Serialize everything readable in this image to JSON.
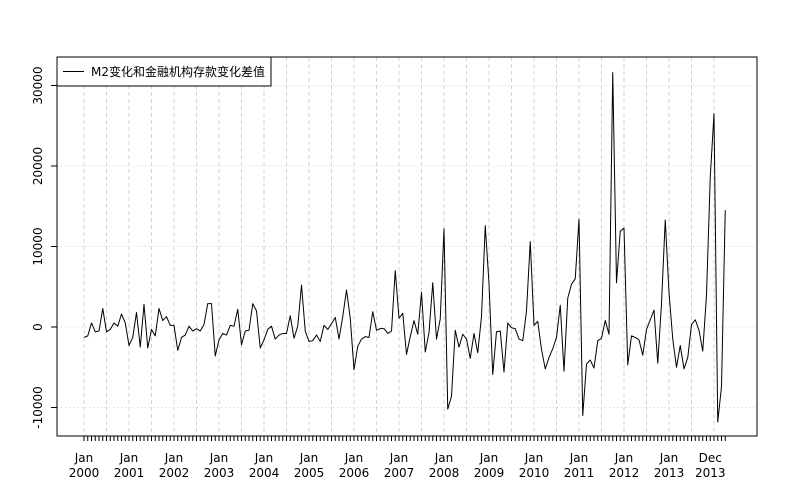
{
  "chart_data": {
    "type": "line",
    "title": "",
    "xlabel": "",
    "ylabel": "",
    "ylim": [
      -13400,
      33500
    ],
    "grid": true,
    "legend_position": "top-left",
    "series": [
      {
        "name": "M2变化和金融机构存款变化差值",
        "color": "#000000",
        "values": [
          -1300,
          -1100,
          500,
          -600,
          -500,
          2300,
          -600,
          -300,
          500,
          100,
          1600,
          500,
          -2300,
          -1300,
          1800,
          -2500,
          2800,
          -2600,
          -300,
          -1100,
          2300,
          800,
          1300,
          200,
          200,
          -2900,
          -1300,
          -1000,
          100,
          -500,
          -200,
          -500,
          300,
          2900,
          2900,
          -3600,
          -1600,
          -800,
          -1000,
          200,
          100,
          2200,
          -2200,
          -500,
          -400,
          2900,
          2000,
          -2600,
          -1600,
          -300,
          100,
          -1500,
          -1000,
          -800,
          -800,
          1400,
          -1400,
          100,
          5200,
          -500,
          -1800,
          -1700,
          -1000,
          -1800,
          200,
          -300,
          400,
          1200,
          -1500,
          1300,
          4600,
          1100,
          -5300,
          -2400,
          -1500,
          -1200,
          -1300,
          1900,
          -400,
          -200,
          -200,
          -800,
          -500,
          7000,
          1100,
          1700,
          -3400,
          -1200,
          800,
          -900,
          4300,
          -3100,
          -700,
          5500,
          -1500,
          1000,
          12200,
          -10200,
          -8600,
          -400,
          -2500,
          -900,
          -1500,
          -3900,
          -800,
          -3200,
          1300,
          12600,
          5400,
          -5900,
          -600,
          -500,
          -5600,
          500,
          -100,
          -200,
          -1500,
          -1700,
          2000,
          10600,
          200,
          700,
          -2800,
          -5200,
          -3800,
          -2700,
          -1300,
          2700,
          -5500,
          3600,
          5300,
          6000,
          13400,
          -11000,
          -4600,
          -4100,
          -5100,
          -1700,
          -1400,
          800,
          -900,
          31600,
          5500,
          11900,
          12300,
          -4700,
          -1100,
          -1300,
          -1600,
          -3500,
          -300,
          900,
          2100,
          -4500,
          2900,
          13300,
          4300,
          -1500,
          -5000,
          -2300,
          -5200,
          -3800,
          300,
          900,
          -400,
          -3000,
          4000,
          18600,
          26500,
          -11800,
          -7400,
          14500
        ]
      }
    ],
    "yticks": [
      -10000,
      0,
      10000,
      20000,
      30000
    ],
    "ytick_labels": [
      "-10000",
      "0",
      "10000",
      "20000",
      "30000"
    ],
    "start_month": "2000-01",
    "xtick_labels": [
      {
        "month": "Jan",
        "year": "2000",
        "index": 0
      },
      {
        "month": "Jan",
        "year": "2001",
        "index": 12
      },
      {
        "month": "Jan",
        "year": "2002",
        "index": 24
      },
      {
        "month": "Jan",
        "year": "2003",
        "index": 36
      },
      {
        "month": "Jan",
        "year": "2004",
        "index": 48
      },
      {
        "month": "Jan",
        "year": "2005",
        "index": 60
      },
      {
        "month": "Jan",
        "year": "2006",
        "index": 72
      },
      {
        "month": "Jan",
        "year": "2007",
        "index": 84
      },
      {
        "month": "Jan",
        "year": "2008",
        "index": 96
      },
      {
        "month": "Jan",
        "year": "2009",
        "index": 108
      },
      {
        "month": "Jan",
        "year": "2010",
        "index": 120
      },
      {
        "month": "Jan",
        "year": "2011",
        "index": 132
      },
      {
        "month": "Jan",
        "year": "2012",
        "index": 144
      },
      {
        "month": "Jan",
        "year": "2013",
        "index": 156
      },
      {
        "month": "Dec",
        "year": "2013",
        "index": 167
      }
    ]
  }
}
